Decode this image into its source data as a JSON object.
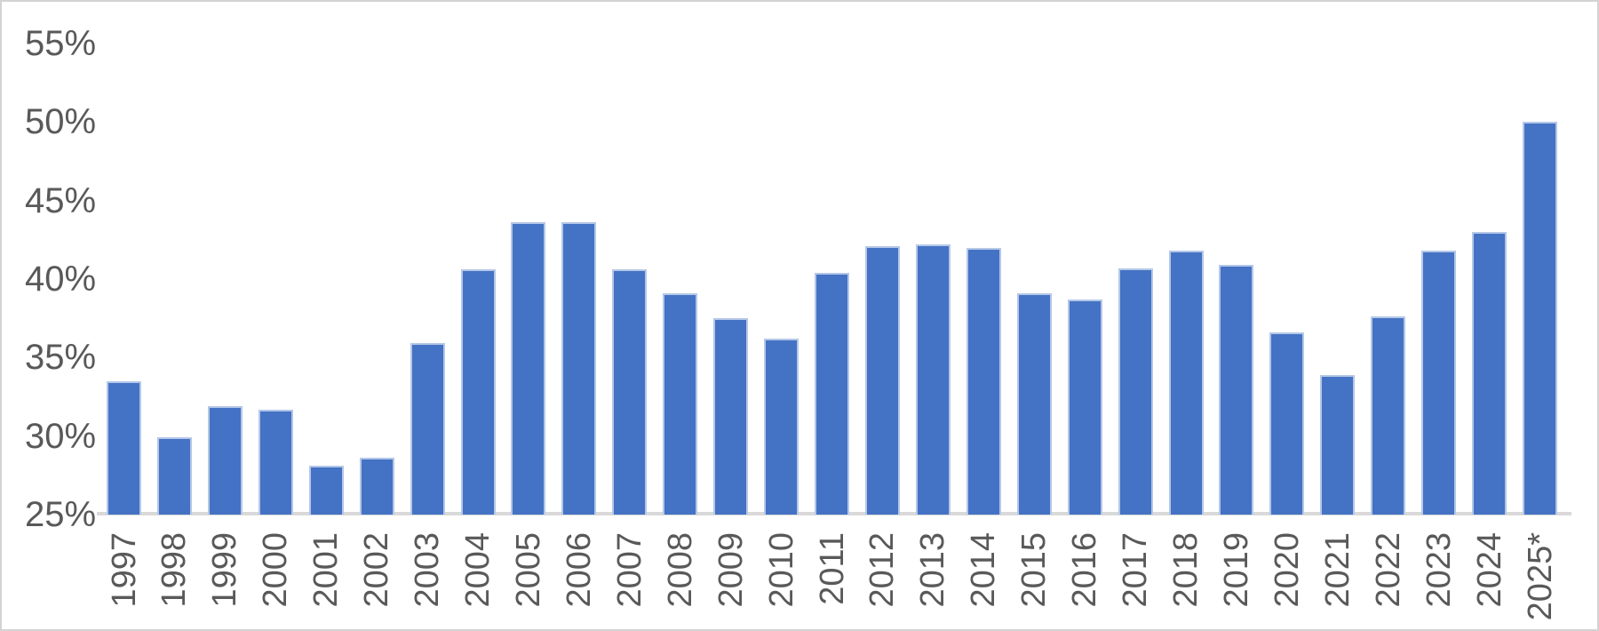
{
  "chart_data": {
    "type": "bar",
    "title": "",
    "xlabel": "",
    "ylabel": "",
    "categories": [
      "1997",
      "1998",
      "1999",
      "2000",
      "2001",
      "2002",
      "2003",
      "2004",
      "2005",
      "2006",
      "2007",
      "2008",
      "2009",
      "2010",
      "2011",
      "2012",
      "2013",
      "2014",
      "2015",
      "2016",
      "2017",
      "2018",
      "2019",
      "2020",
      "2021",
      "2022",
      "2023",
      "2024",
      "2025*"
    ],
    "values": [
      33.5,
      29.9,
      31.9,
      31.7,
      28.1,
      28.6,
      35.9,
      40.6,
      43.6,
      43.6,
      40.6,
      39.1,
      37.5,
      36.2,
      40.4,
      42.1,
      42.2,
      42.0,
      39.1,
      38.7,
      40.7,
      41.8,
      40.9,
      36.6,
      33.9,
      37.6,
      41.8,
      43.0,
      50.0
    ],
    "ylim": [
      25,
      55
    ],
    "y_tick_values": [
      55,
      50,
      45,
      40,
      35,
      30,
      25
    ],
    "y_tick_labels": [
      "55%",
      "50%",
      "45%",
      "40%",
      "35%",
      "30%",
      "25%"
    ],
    "x_tick_rotation_degrees": -90,
    "grid": false,
    "legend": "none",
    "colors": {
      "bar": "#4472C4",
      "bar_border": "#B4C7E7",
      "axis_line": "#D9D9D9",
      "tick_label": "#595959",
      "background": "#FFFFFF"
    }
  }
}
